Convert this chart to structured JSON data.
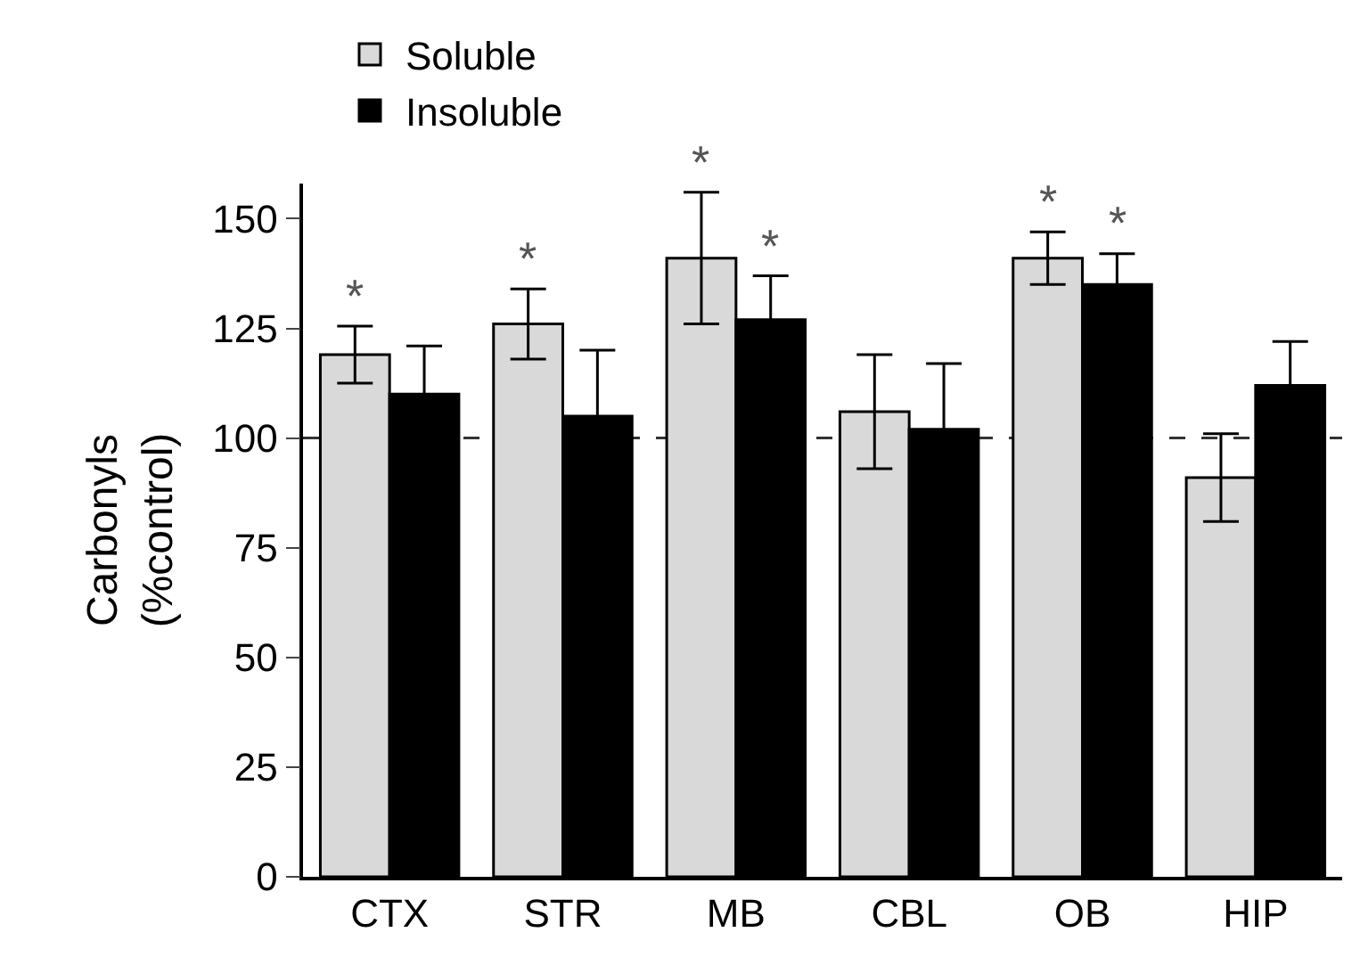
{
  "chart_data": {
    "type": "bar",
    "ylabel": "Carbonyls\n(%control)",
    "categories": [
      "CTX",
      "STR",
      "MB",
      "CBL",
      "OB",
      "HIP"
    ],
    "series": [
      {
        "name": "Soluble",
        "color": "#d9d9d9",
        "values": [
          119,
          126,
          141,
          106,
          141,
          91
        ],
        "errors": [
          6.5,
          8,
          15,
          13,
          6,
          10
        ],
        "value_labels": [
          "*",
          "*",
          "*",
          null,
          "*",
          null
        ]
      },
      {
        "name": "Insoluble",
        "color": "#000000",
        "values": [
          110,
          105,
          127,
          102,
          135,
          112
        ],
        "errors": [
          11,
          15,
          10,
          15,
          7,
          10
        ],
        "value_labels": [
          null,
          null,
          "*",
          null,
          "*",
          null
        ]
      }
    ],
    "ylim": [
      0,
      158
    ],
    "yticks": [
      0,
      25,
      50,
      75,
      100,
      125,
      150
    ],
    "ref_lines": [
      {
        "axis": "y",
        "value": 100,
        "line_style": "dashed"
      }
    ],
    "grid": false,
    "legend": "top left"
  }
}
